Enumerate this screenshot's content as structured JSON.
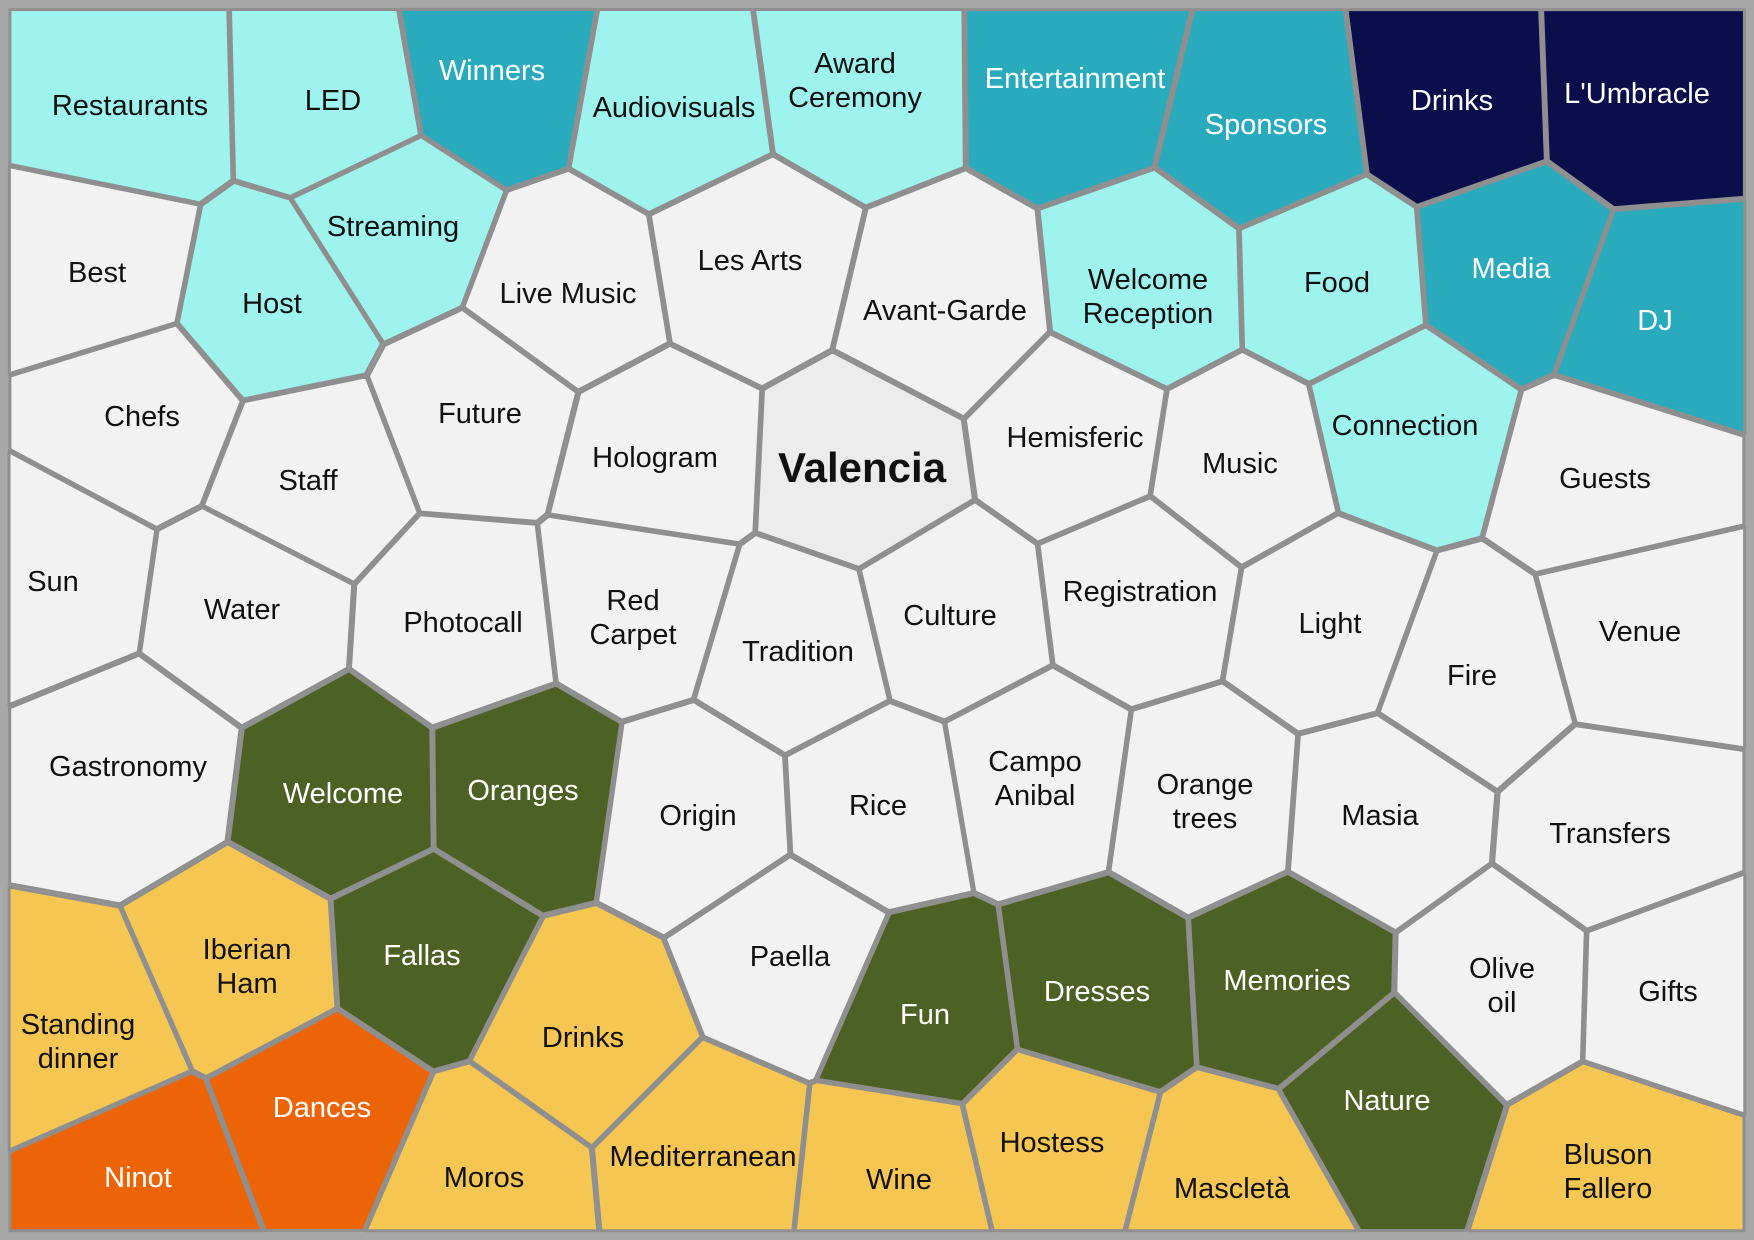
{
  "colors": {
    "light_cyan": "#9ff3ef",
    "teal": "#2aabbd",
    "navy": "#0a0f4c",
    "white": "#f2f2f3",
    "center": "#ececec",
    "olive": "#4e6124",
    "yellow": "#f6c653",
    "orange": "#ed6407",
    "background": "#a7a7a7"
  },
  "diagram": {
    "center": "Valencia",
    "cells": [
      {
        "name": "Restaurants",
        "group": "light_cyan"
      },
      {
        "name": "LED",
        "group": "light_cyan"
      },
      {
        "name": "Winners",
        "group": "teal"
      },
      {
        "name": "Audiovisuals",
        "group": "light_cyan"
      },
      {
        "name": "Award Ceremony",
        "group": "light_cyan"
      },
      {
        "name": "Entertainment",
        "group": "teal"
      },
      {
        "name": "Sponsors",
        "group": "teal"
      },
      {
        "name": "Drinks",
        "group": "navy"
      },
      {
        "name": "L'Umbracle",
        "group": "navy"
      },
      {
        "name": "Best",
        "group": "white"
      },
      {
        "name": "Host",
        "group": "light_cyan"
      },
      {
        "name": "Streaming",
        "group": "light_cyan"
      },
      {
        "name": "Live Music",
        "group": "white"
      },
      {
        "name": "Les Arts",
        "group": "white"
      },
      {
        "name": "Avant-Garde",
        "group": "white"
      },
      {
        "name": "Welcome Reception",
        "group": "light_cyan"
      },
      {
        "name": "Food",
        "group": "light_cyan"
      },
      {
        "name": "Media",
        "group": "teal"
      },
      {
        "name": "DJ",
        "group": "teal"
      },
      {
        "name": "Chefs",
        "group": "white"
      },
      {
        "name": "Future",
        "group": "white"
      },
      {
        "name": "Staff",
        "group": "white"
      },
      {
        "name": "Hologram",
        "group": "white"
      },
      {
        "name": "Valencia",
        "group": "center"
      },
      {
        "name": "Hemisferic",
        "group": "white"
      },
      {
        "name": "Music",
        "group": "white"
      },
      {
        "name": "Connection",
        "group": "light_cyan"
      },
      {
        "name": "Guests",
        "group": "white"
      },
      {
        "name": "Sun",
        "group": "white"
      },
      {
        "name": "Water",
        "group": "white"
      },
      {
        "name": "Photocall",
        "group": "white"
      },
      {
        "name": "Red Carpet",
        "group": "white"
      },
      {
        "name": "Tradition",
        "group": "white"
      },
      {
        "name": "Culture",
        "group": "white"
      },
      {
        "name": "Registration",
        "group": "white"
      },
      {
        "name": "Light",
        "group": "white"
      },
      {
        "name": "Fire",
        "group": "white"
      },
      {
        "name": "Venue",
        "group": "white"
      },
      {
        "name": "Gastronomy",
        "group": "white"
      },
      {
        "name": "Welcome",
        "group": "olive"
      },
      {
        "name": "Oranges",
        "group": "olive"
      },
      {
        "name": "Origin",
        "group": "white"
      },
      {
        "name": "Rice",
        "group": "white"
      },
      {
        "name": "Campo Anibal",
        "group": "white"
      },
      {
        "name": "Orange trees",
        "group": "white"
      },
      {
        "name": "Masia",
        "group": "white"
      },
      {
        "name": "Transfers",
        "group": "white"
      },
      {
        "name": "Standing dinner",
        "group": "yellow"
      },
      {
        "name": "Iberian Ham",
        "group": "yellow"
      },
      {
        "name": "Fallas",
        "group": "olive"
      },
      {
        "name": "Paella",
        "group": "white"
      },
      {
        "name": "Fun",
        "group": "olive"
      },
      {
        "name": "Dresses",
        "group": "olive"
      },
      {
        "name": "Memories",
        "group": "olive"
      },
      {
        "name": "Olive oil",
        "group": "white"
      },
      {
        "name": "Gifts",
        "group": "white"
      },
      {
        "name": "Drinks",
        "group": "yellow"
      },
      {
        "name": "Dances",
        "group": "orange"
      },
      {
        "name": "Ninot",
        "group": "orange"
      },
      {
        "name": "Moros",
        "group": "yellow"
      },
      {
        "name": "Mediterranean",
        "group": "yellow"
      },
      {
        "name": "Wine",
        "group": "yellow"
      },
      {
        "name": "Hostess",
        "group": "yellow"
      },
      {
        "name": "Mascletà",
        "group": "yellow"
      },
      {
        "name": "Nature",
        "group": "olive"
      },
      {
        "name": "Bluson Fallero",
        "group": "yellow"
      }
    ]
  }
}
